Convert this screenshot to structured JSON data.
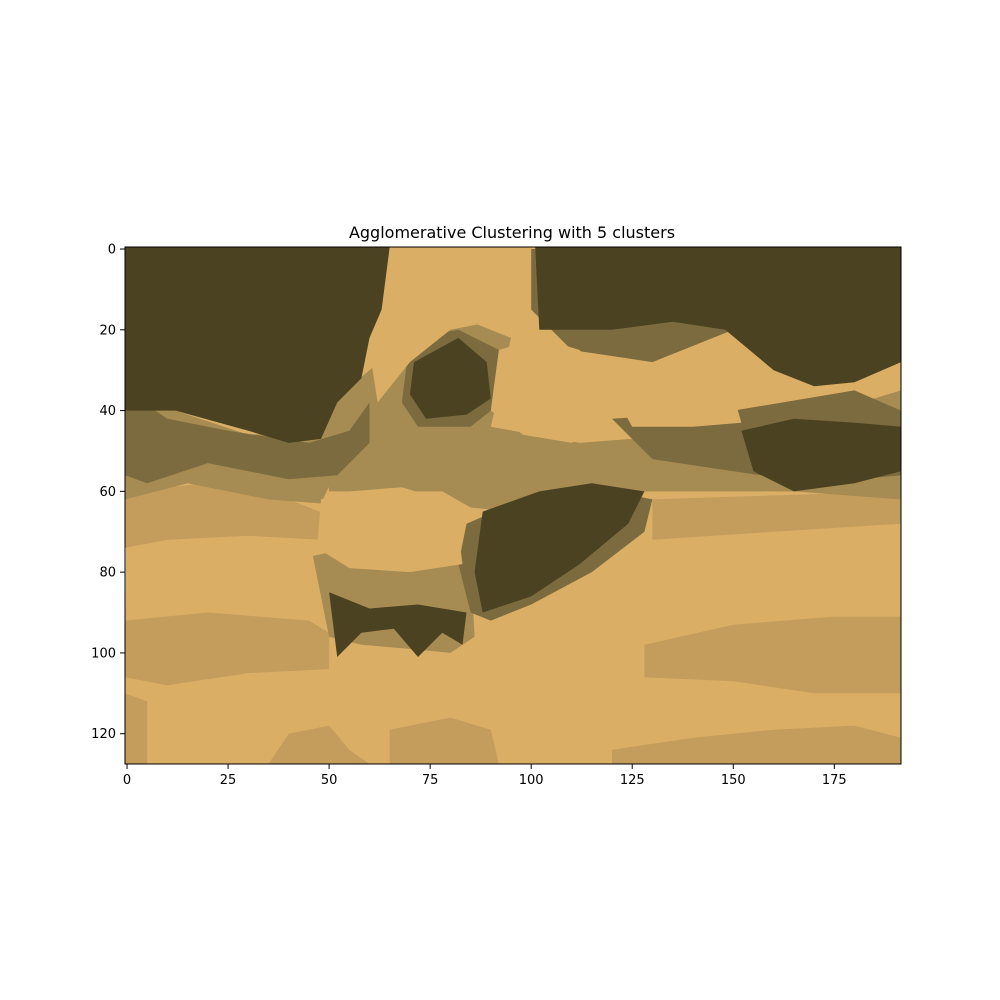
{
  "chart_data": {
    "type": "heatmap",
    "title": "Agglomerative Clustering with 5 clusters",
    "xlabel": "",
    "ylabel": "",
    "image_width": 192,
    "image_height": 128,
    "xlim": [
      -0.5,
      191.5
    ],
    "ylim": [
      127.5,
      -0.5
    ],
    "x_ticks": [
      0,
      25,
      50,
      75,
      100,
      125,
      150,
      175
    ],
    "y_ticks": [
      0,
      20,
      40,
      60,
      80,
      100,
      120
    ],
    "cluster_colors": [
      "#4b4221",
      "#7c6b3e",
      "#a68b52",
      "#c49c5c",
      "#dbae66"
    ],
    "cluster_regions": [
      {
        "cluster": 4,
        "points": [
          [
            0,
            -0.5
          ],
          [
            191.5,
            -0.5
          ],
          [
            191.5,
            127.5
          ],
          [
            -0.5,
            127.5
          ]
        ]
      },
      {
        "cluster": 3,
        "points": [
          [
            -0.5,
            92
          ],
          [
            20,
            90
          ],
          [
            45,
            92
          ],
          [
            50,
            95
          ],
          [
            50,
            104
          ],
          [
            30,
            105
          ],
          [
            10,
            108
          ],
          [
            -0.5,
            106
          ]
        ]
      },
      {
        "cluster": 3,
        "points": [
          [
            128,
            98
          ],
          [
            150,
            93
          ],
          [
            175,
            91
          ],
          [
            191.5,
            91
          ],
          [
            191.5,
            110
          ],
          [
            170,
            110
          ],
          [
            150,
            107
          ],
          [
            128,
            106
          ]
        ]
      },
      {
        "cluster": 3,
        "points": [
          [
            -0.5,
            60
          ],
          [
            20,
            58
          ],
          [
            40,
            62
          ],
          [
            50,
            66
          ],
          [
            48,
            72
          ],
          [
            30,
            71
          ],
          [
            10,
            72
          ],
          [
            -0.5,
            74
          ]
        ]
      },
      {
        "cluster": 3,
        "points": [
          [
            130,
            62
          ],
          [
            160,
            61
          ],
          [
            191.5,
            60
          ],
          [
            191.5,
            68
          ],
          [
            160,
            70
          ],
          [
            130,
            72
          ]
        ]
      },
      {
        "cluster": 3,
        "points": [
          [
            40,
            120
          ],
          [
            50,
            118
          ],
          [
            55,
            124
          ],
          [
            60,
            127.5
          ],
          [
            35,
            127.5
          ]
        ]
      },
      {
        "cluster": 3,
        "points": [
          [
            65,
            119
          ],
          [
            80,
            116
          ],
          [
            90,
            119
          ],
          [
            92,
            127.5
          ],
          [
            65,
            127.5
          ]
        ]
      },
      {
        "cluster": 3,
        "points": [
          [
            120,
            124
          ],
          [
            140,
            121
          ],
          [
            160,
            119
          ],
          [
            180,
            118
          ],
          [
            191.5,
            121
          ],
          [
            191.5,
            127.5
          ],
          [
            120,
            127.5
          ]
        ]
      },
      {
        "cluster": 3,
        "points": [
          [
            -0.5,
            110
          ],
          [
            5,
            112
          ],
          [
            5,
            127.5
          ],
          [
            -0.5,
            127.5
          ]
        ]
      },
      {
        "cluster": 2,
        "points": [
          [
            -0.5,
            20
          ],
          [
            12,
            40
          ],
          [
            30,
            46
          ],
          [
            50,
            45
          ],
          [
            55,
            48
          ],
          [
            48,
            63
          ],
          [
            35,
            62
          ],
          [
            15,
            58
          ],
          [
            -0.5,
            62
          ]
        ]
      },
      {
        "cluster": 2,
        "points": [
          [
            48,
            40
          ],
          [
            60,
            30
          ],
          [
            72,
            20
          ],
          [
            85,
            18
          ],
          [
            95,
            22
          ],
          [
            90,
            44
          ],
          [
            112,
            48
          ],
          [
            150,
            45
          ],
          [
            175,
            40
          ],
          [
            191.5,
            35
          ],
          [
            191.5,
            62
          ],
          [
            165,
            60
          ],
          [
            128,
            60
          ],
          [
            115,
            62
          ],
          [
            95,
            65
          ],
          [
            85,
            64
          ],
          [
            78,
            60
          ],
          [
            60,
            60
          ],
          [
            50,
            60
          ]
        ]
      },
      {
        "cluster": 2,
        "points": [
          [
            46,
            76
          ],
          [
            55,
            74
          ],
          [
            80,
            74
          ],
          [
            85,
            78
          ],
          [
            86,
            96
          ],
          [
            80,
            100
          ],
          [
            70,
            99
          ],
          [
            58,
            98
          ],
          [
            50,
            96
          ]
        ]
      },
      {
        "cluster": 1,
        "points": [
          [
            -0.5,
            35
          ],
          [
            10,
            42
          ],
          [
            25,
            45
          ],
          [
            45,
            48
          ],
          [
            55,
            45
          ],
          [
            60,
            38
          ],
          [
            60,
            48
          ],
          [
            52,
            56
          ],
          [
            40,
            57
          ],
          [
            20,
            53
          ],
          [
            5,
            58
          ],
          [
            -0.5,
            56
          ]
        ]
      },
      {
        "cluster": 1,
        "points": [
          [
            70,
            22
          ],
          [
            82,
            20
          ],
          [
            92,
            25
          ],
          [
            90,
            40
          ],
          [
            85,
            44
          ],
          [
            72,
            44
          ],
          [
            68,
            38
          ]
        ]
      },
      {
        "cluster": 1,
        "points": [
          [
            98,
            62
          ],
          [
            120,
            60
          ],
          [
            130,
            62
          ],
          [
            128,
            70
          ],
          [
            115,
            80
          ],
          [
            100,
            88
          ],
          [
            90,
            92
          ],
          [
            85,
            90
          ],
          [
            82,
            78
          ],
          [
            84,
            68
          ]
        ]
      },
      {
        "cluster": 1,
        "points": [
          [
            120,
            42
          ],
          [
            150,
            40
          ],
          [
            180,
            35
          ],
          [
            191.5,
            40
          ],
          [
            191.5,
            56
          ],
          [
            170,
            58
          ],
          [
            150,
            55
          ],
          [
            130,
            52
          ]
        ]
      },
      {
        "cluster": 1,
        "points": [
          [
            100,
            0
          ],
          [
            140,
            -0.5
          ],
          [
            160,
            10
          ],
          [
            150,
            20
          ],
          [
            130,
            28
          ],
          [
            110,
            25
          ],
          [
            100,
            15
          ]
        ]
      },
      {
        "cluster": 4,
        "points": [
          [
            92,
            25
          ],
          [
            102,
            22
          ],
          [
            112,
            25
          ],
          [
            118,
            33
          ],
          [
            120,
            44
          ],
          [
            110,
            48
          ],
          [
            98,
            46
          ],
          [
            90,
            40
          ]
        ]
      },
      {
        "cluster": 4,
        "points": [
          [
            48,
            62
          ],
          [
            55,
            60
          ],
          [
            68,
            59
          ],
          [
            78,
            62
          ],
          [
            82,
            70
          ],
          [
            83,
            78
          ],
          [
            70,
            80
          ],
          [
            55,
            79
          ],
          [
            47,
            74
          ]
        ]
      },
      {
        "cluster": 4,
        "points": [
          [
            68,
            -0.5
          ],
          [
            95,
            -0.5
          ],
          [
            98,
            10
          ],
          [
            90,
            18
          ],
          [
            80,
            20
          ],
          [
            70,
            28
          ],
          [
            62,
            38
          ],
          [
            60,
            25
          ],
          [
            66,
            10
          ]
        ]
      },
      {
        "cluster": 4,
        "points": [
          [
            120,
            35
          ],
          [
            135,
            33
          ],
          [
            150,
            36
          ],
          [
            152,
            43
          ],
          [
            140,
            44
          ],
          [
            125,
            44
          ]
        ]
      },
      {
        "cluster": 0,
        "points": [
          [
            -0.5,
            -0.5
          ],
          [
            65,
            -0.5
          ],
          [
            63,
            15
          ],
          [
            60,
            22
          ],
          [
            58,
            32
          ],
          [
            52,
            38
          ],
          [
            48,
            47
          ],
          [
            40,
            48
          ],
          [
            30,
            45
          ],
          [
            12,
            40
          ],
          [
            -0.5,
            40
          ]
        ]
      },
      {
        "cluster": 0,
        "points": [
          [
            101,
            -0.5
          ],
          [
            191.5,
            -0.5
          ],
          [
            191.5,
            28
          ],
          [
            180,
            33
          ],
          [
            170,
            34
          ],
          [
            160,
            30
          ],
          [
            148,
            20
          ],
          [
            135,
            18
          ],
          [
            120,
            20
          ],
          [
            102,
            20
          ]
        ]
      },
      {
        "cluster": 0,
        "points": [
          [
            71,
            28
          ],
          [
            82,
            22
          ],
          [
            89,
            28
          ],
          [
            90,
            37
          ],
          [
            84,
            41
          ],
          [
            74,
            42
          ],
          [
            70,
            36
          ]
        ]
      },
      {
        "cluster": 0,
        "points": [
          [
            88,
            65
          ],
          [
            102,
            60
          ],
          [
            115,
            58
          ],
          [
            128,
            60
          ],
          [
            124,
            68
          ],
          [
            112,
            78
          ],
          [
            100,
            86
          ],
          [
            88,
            90
          ],
          [
            86,
            80
          ]
        ]
      },
      {
        "cluster": 0,
        "points": [
          [
            50,
            85
          ],
          [
            60,
            89
          ],
          [
            72,
            88
          ],
          [
            84,
            90
          ],
          [
            83,
            98
          ],
          [
            78,
            95
          ],
          [
            72,
            101
          ],
          [
            66,
            94
          ],
          [
            58,
            95
          ],
          [
            52,
            101
          ]
        ]
      },
      {
        "cluster": 0,
        "points": [
          [
            152,
            45
          ],
          [
            165,
            42
          ],
          [
            180,
            43
          ],
          [
            191.5,
            44
          ],
          [
            191.5,
            55
          ],
          [
            180,
            58
          ],
          [
            165,
            60
          ],
          [
            155,
            55
          ]
        ]
      }
    ]
  }
}
